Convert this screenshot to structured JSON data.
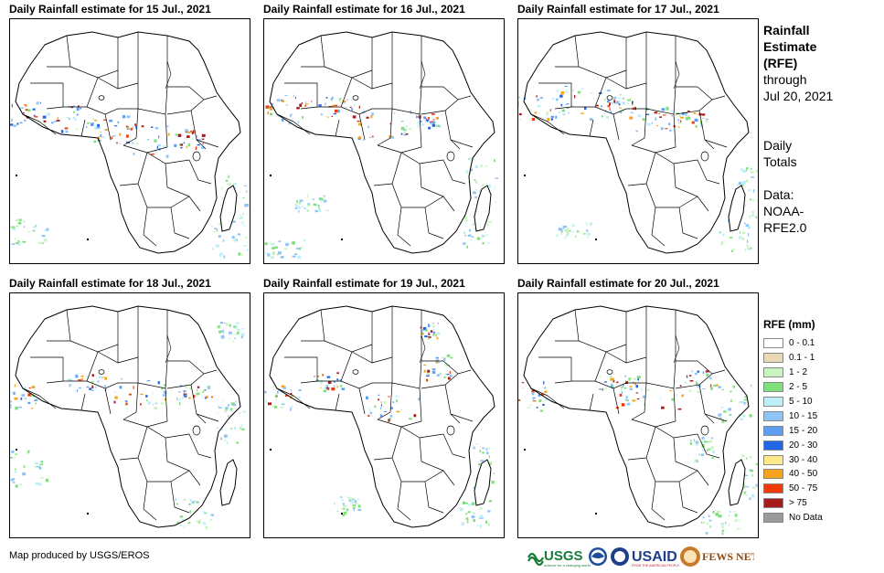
{
  "panels": [
    {
      "title": "Daily Rainfall estimate for 15 Jul., 2021"
    },
    {
      "title": "Daily Rainfall estimate for 16 Jul., 2021"
    },
    {
      "title": "Daily Rainfall estimate for 17 Jul., 2021"
    },
    {
      "title": "Daily Rainfall estimate for 18 Jul., 2021"
    },
    {
      "title": "Daily Rainfall estimate for 19 Jul., 2021"
    },
    {
      "title": "Daily Rainfall estimate for 20 Jul., 2021"
    }
  ],
  "sidebar": {
    "title_lines": [
      "Rainfall",
      "Estimate",
      "(RFE)"
    ],
    "through_lines": [
      "through",
      "Jul 20, 2021"
    ],
    "totals_lines": [
      "Daily",
      "Totals"
    ],
    "data_lines": [
      "Data:",
      "NOAA-",
      "RFE2.0"
    ]
  },
  "legend": {
    "title": "RFE (mm)",
    "items": [
      {
        "label": "0 - 0.1",
        "color": "#ffffff"
      },
      {
        "label": "0.1 - 1",
        "color": "#ead9b6"
      },
      {
        "label": "1 - 2",
        "color": "#c8f5c0"
      },
      {
        "label": "2 - 5",
        "color": "#7ee07a"
      },
      {
        "label": "5 - 10",
        "color": "#bdeff8"
      },
      {
        "label": "10 - 15",
        "color": "#8ec4f6"
      },
      {
        "label": "15 - 20",
        "color": "#5b9ef2"
      },
      {
        "label": "20 - 30",
        "color": "#2166e6"
      },
      {
        "label": "30 - 40",
        "color": "#fde98a"
      },
      {
        "label": "40 - 50",
        "color": "#f7a21b"
      },
      {
        "label": "50 - 75",
        "color": "#f03a08"
      },
      {
        "label": "> 75",
        "color": "#a61b1b"
      },
      {
        "label": "No Data",
        "color": "#9a9a9a"
      }
    ]
  },
  "credit": "Map produced by USGS/EROS",
  "logos": {
    "usgs": "USGS",
    "usgs_tagline": "science for a changing world",
    "usaid": "USAID",
    "usaid_tagline": "FROM THE AMERICAN PEOPLE",
    "fews": "FEWS NET"
  }
}
